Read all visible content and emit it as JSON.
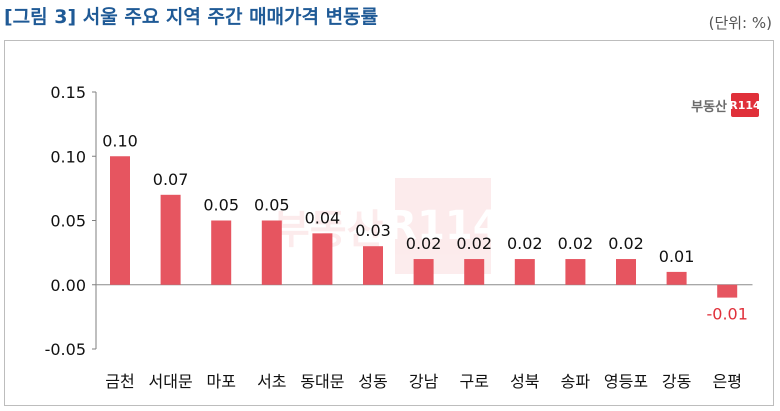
{
  "header": {
    "title": "[그림 3] 서울 주요 지역 주간 매매가격 변동률",
    "unit": "(단위: %)"
  },
  "branding": {
    "logo_text": "부동산",
    "logo_mark": "R114",
    "watermark_text": "부동산",
    "watermark_mark": "R114"
  },
  "colors": {
    "title": "#1f5a96",
    "bar": "#e65560",
    "negative_label": "#e0303a"
  },
  "chart_data": {
    "type": "bar",
    "categories": [
      "금천",
      "서대문",
      "마포",
      "서초",
      "동대문",
      "성동",
      "강남",
      "구로",
      "성북",
      "송파",
      "영등포",
      "강동",
      "은평"
    ],
    "values": [
      0.1,
      0.07,
      0.05,
      0.05,
      0.04,
      0.03,
      0.02,
      0.02,
      0.02,
      0.02,
      0.02,
      0.01,
      -0.01
    ],
    "value_labels": [
      "0.10",
      "0.07",
      "0.05",
      "0.05",
      "0.04",
      "0.03",
      "0.02",
      "0.02",
      "0.02",
      "0.02",
      "0.02",
      "0.01",
      "-0.01"
    ],
    "ylim": [
      -0.05,
      0.15
    ],
    "yticks": [
      -0.05,
      0.0,
      0.05,
      0.1,
      0.15
    ],
    "ytick_labels": [
      "-0.05",
      "0.00",
      "0.05",
      "0.10",
      "0.15"
    ],
    "title": "",
    "xlabel": "",
    "ylabel": "",
    "grid": false,
    "legend": "none"
  }
}
